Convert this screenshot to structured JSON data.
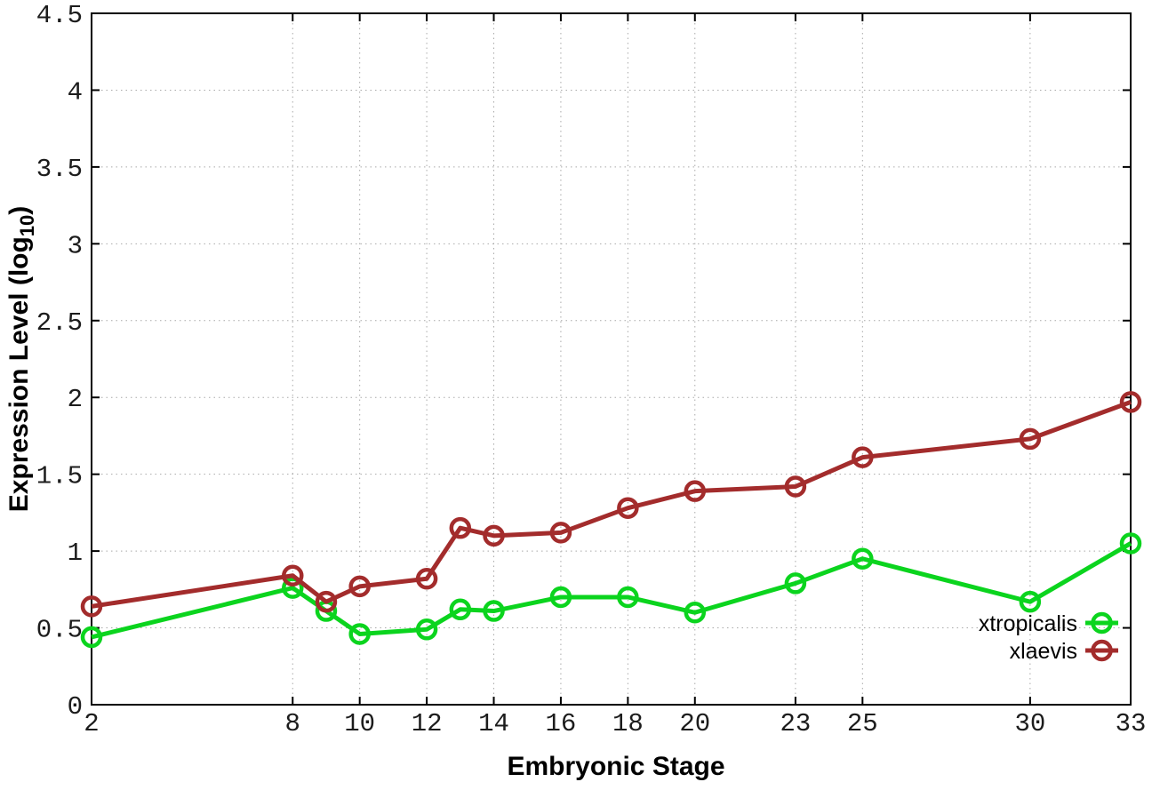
{
  "chart_data": {
    "type": "line",
    "title": "",
    "xlabel": "Embryonic Stage",
    "ylabel": "Expression Level (log10)",
    "ylabel_parts": {
      "main": "Expression Level (log",
      "sub": "10",
      "close": ")"
    },
    "xlim": [
      2,
      33
    ],
    "ylim": [
      0,
      4.5
    ],
    "grid": true,
    "grid_style": "dotted",
    "legend_position": "inside-right-lower",
    "marker": "open-circle",
    "background_color": "#ffffff",
    "x": [
      2,
      8,
      9,
      10,
      12,
      13,
      14,
      16,
      18,
      20,
      23,
      25,
      30,
      33
    ],
    "series": [
      {
        "name": "xtropicalis",
        "color": "#0bd41e",
        "values": [
          0.44,
          0.76,
          0.61,
          0.46,
          0.49,
          0.62,
          0.61,
          0.7,
          0.7,
          0.6,
          0.79,
          0.95,
          0.67,
          1.05
        ]
      },
      {
        "name": "xlaevis",
        "color": "#a32c2c",
        "values": [
          0.64,
          0.84,
          0.67,
          0.77,
          0.82,
          1.15,
          1.1,
          1.12,
          1.28,
          1.39,
          1.42,
          1.61,
          1.73,
          1.97
        ]
      }
    ],
    "xticks": [
      2,
      8,
      10,
      12,
      14,
      16,
      18,
      20,
      23,
      25,
      30,
      33
    ],
    "xtick_labels": [
      "2",
      "8",
      "10",
      "12",
      "14",
      "16",
      "18",
      "20",
      "23",
      "25",
      "30",
      "33"
    ],
    "yticks": [
      0,
      0.5,
      1,
      1.5,
      2,
      2.5,
      3,
      3.5,
      4,
      4.5
    ],
    "ytick_labels": [
      "0",
      "0.5",
      "1",
      "1.5",
      "2",
      "2.5",
      "3",
      "3.5",
      "4",
      "4.5"
    ]
  }
}
